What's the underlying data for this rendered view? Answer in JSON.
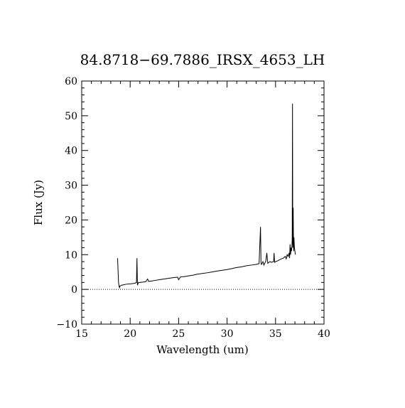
{
  "chart_data": {
    "type": "line",
    "title": "84.8718−69.7886_IRSX_4653_LH",
    "xlabel": "Wavelength (um)",
    "ylabel": "Flux (Jy)",
    "xlim": [
      15,
      40
    ],
    "ylim": [
      -10,
      60
    ],
    "x_ticks": [
      15,
      20,
      25,
      30,
      35,
      40
    ],
    "x_tick_labels": [
      "15",
      "20",
      "25",
      "30",
      "35",
      "40"
    ],
    "y_ticks": [
      -10,
      0,
      10,
      20,
      30,
      40,
      50,
      60
    ],
    "y_tick_labels": [
      "−10",
      "0",
      "10",
      "20",
      "30",
      "40",
      "50",
      "60"
    ],
    "grid": false,
    "legend": "none",
    "reference_line": {
      "y": 0,
      "style": "dotted"
    },
    "colors": {
      "line": "#000000",
      "axes": "#000000",
      "background": "#ffffff"
    },
    "series": [
      {
        "x": [
          18.7,
          18.8,
          18.85,
          18.9,
          18.95,
          19.0,
          19.1,
          19.3,
          19.6,
          20.0,
          20.3,
          20.5,
          20.65,
          20.7,
          20.75,
          20.85,
          21.0,
          21.3,
          21.6,
          21.8,
          21.9,
          22.2,
          22.6,
          23.0,
          23.5,
          24.0,
          24.5,
          24.9,
          25.0,
          25.2,
          25.6,
          26.0,
          26.5,
          26.8,
          27.0,
          27.5,
          28.0,
          28.4,
          28.6,
          29.0,
          29.5,
          30.0,
          30.5,
          30.8,
          31.0,
          31.5,
          32.0,
          32.5,
          33.0,
          33.3,
          33.45,
          33.5,
          33.55,
          33.7,
          33.8,
          34.0,
          34.1,
          34.2,
          34.4,
          34.6,
          34.8,
          34.85,
          34.9,
          35.0,
          35.2,
          35.4,
          35.6,
          35.8,
          36.0,
          36.1,
          36.2,
          36.3,
          36.4,
          36.45,
          36.5,
          36.55,
          36.6,
          36.65,
          36.7,
          36.72,
          36.75,
          36.78,
          36.8,
          36.82,
          36.85,
          36.88,
          36.9,
          36.95,
          37.0,
          37.05
        ],
        "y": [
          9.0,
          2.0,
          1.0,
          0.5,
          1.0,
          1.0,
          1.2,
          1.3,
          1.5,
          1.6,
          1.7,
          1.8,
          2.0,
          9.0,
          1.2,
          2.0,
          2.0,
          2.1,
          2.2,
          3.0,
          2.3,
          2.4,
          2.6,
          2.8,
          3.0,
          3.2,
          3.4,
          3.5,
          2.8,
          3.6,
          3.7,
          3.9,
          4.1,
          4.3,
          4.4,
          4.6,
          4.8,
          5.0,
          5.1,
          5.3,
          5.5,
          5.7,
          6.0,
          6.2,
          6.3,
          6.5,
          6.8,
          7.0,
          7.2,
          7.4,
          18.0,
          7.5,
          7.2,
          8.0,
          7.0,
          8.2,
          10.5,
          7.5,
          8.0,
          7.8,
          8.0,
          10.5,
          7.8,
          8.0,
          8.2,
          8.5,
          8.8,
          9.0,
          9.5,
          8.8,
          10.0,
          9.5,
          10.5,
          9.0,
          13.0,
          10.0,
          12.0,
          11.0,
          13.0,
          15.0,
          53.5,
          12.0,
          15.0,
          23.5,
          14.0,
          11.0,
          15.0,
          12.0,
          11.0,
          10.0
        ]
      }
    ]
  }
}
